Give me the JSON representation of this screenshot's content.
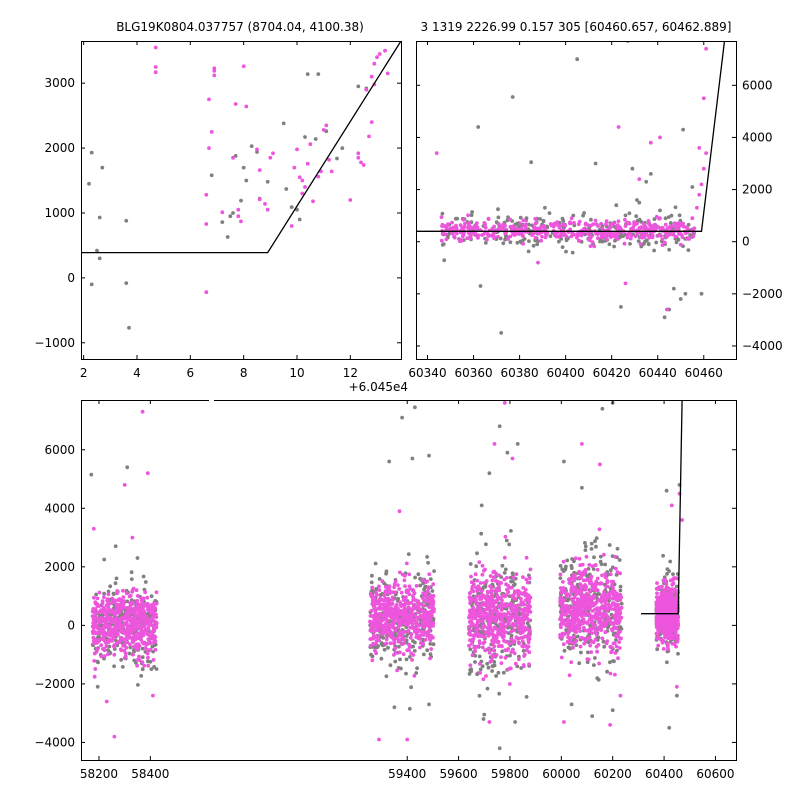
{
  "titles": {
    "left": "BLG19K0804.037757 (8704.04, 4100.38)",
    "right": "3 1319 2226.99 0.157 305 [60460.657, 60462.889]"
  },
  "colors": {
    "series_a": "#808080",
    "series_b": "#ee55dd",
    "model": "#000000"
  },
  "chart_data": [
    {
      "id": "top-left",
      "type": "scatter",
      "xlim": [
        1.9,
        13.9
      ],
      "ylim": [
        -1250,
        3650
      ],
      "xticks": [
        2,
        4,
        6,
        8,
        10,
        12
      ],
      "yticks": [
        -1000,
        0,
        1000,
        2000,
        3000
      ],
      "xtick_labels": [
        "2",
        "4",
        "6",
        "8",
        "10",
        "12"
      ],
      "ytick_labels": [
        "−1000",
        "0",
        "1000",
        "2000",
        "3000"
      ],
      "series": [
        {
          "values": [
            [
              2.2,
              1450
            ],
            [
              2.3,
              1930
            ],
            [
              2.3,
              -100
            ],
            [
              2.5,
              420
            ],
            [
              2.6,
              300
            ],
            [
              2.6,
              930
            ],
            [
              2.7,
              1700
            ],
            [
              3.6,
              880
            ],
            [
              3.6,
              -80
            ],
            [
              3.7,
              -770
            ],
            [
              6.8,
              1580
            ],
            [
              7.2,
              860
            ],
            [
              7.4,
              630
            ],
            [
              7.5,
              950
            ],
            [
              7.6,
              1000
            ],
            [
              7.7,
              1880
            ],
            [
              7.9,
              1190
            ],
            [
              8.0,
              1700
            ],
            [
              8.1,
              1500
            ],
            [
              8.3,
              2030
            ],
            [
              8.5,
              1940
            ],
            [
              8.6,
              1220
            ],
            [
              8.9,
              1480
            ],
            [
              9.5,
              2380
            ],
            [
              9.6,
              1370
            ],
            [
              9.8,
              1090
            ],
            [
              10.0,
              1050
            ],
            [
              10.1,
              900
            ],
            [
              10.3,
              2170
            ],
            [
              10.4,
              3140
            ],
            [
              10.8,
              3140
            ],
            [
              10.7,
              2140
            ],
            [
              11.1,
              2260
            ],
            [
              11.5,
              1840
            ],
            [
              11.7,
              2000
            ],
            [
              12.3,
              2950
            ],
            [
              12.6,
              2920
            ]
          ]
        },
        {
          "values": [
            [
              4.7,
              3550
            ],
            [
              4.7,
              3250
            ],
            [
              4.7,
              3170
            ],
            [
              6.6,
              830
            ],
            [
              6.6,
              -220
            ],
            [
              6.6,
              1280
            ],
            [
              6.7,
              2750
            ],
            [
              6.7,
              2000
            ],
            [
              6.8,
              2250
            ],
            [
              6.9,
              3190
            ],
            [
              6.9,
              3230
            ],
            [
              6.9,
              3120
            ],
            [
              7.2,
              1010
            ],
            [
              7.6,
              1850
            ],
            [
              7.7,
              2680
            ],
            [
              7.8,
              950
            ],
            [
              7.8,
              1050
            ],
            [
              7.9,
              870
            ],
            [
              8.0,
              3260
            ],
            [
              8.1,
              2640
            ],
            [
              8.5,
              1980
            ],
            [
              8.6,
              1660
            ],
            [
              8.6,
              1210
            ],
            [
              8.8,
              1140
            ],
            [
              8.9,
              1050
            ],
            [
              9.0,
              1850
            ],
            [
              9.1,
              1920
            ],
            [
              9.8,
              800
            ],
            [
              9.9,
              1700
            ],
            [
              10.0,
              1980
            ],
            [
              10.1,
              1550
            ],
            [
              10.2,
              1500
            ],
            [
              10.2,
              1300
            ],
            [
              10.3,
              1400
            ],
            [
              10.4,
              1760
            ],
            [
              10.5,
              2060
            ],
            [
              10.6,
              1180
            ],
            [
              10.8,
              1560
            ],
            [
              10.9,
              1640
            ],
            [
              11.0,
              2280
            ],
            [
              11.1,
              2350
            ],
            [
              11.2,
              1820
            ],
            [
              11.3,
              1640
            ],
            [
              12.0,
              1200
            ],
            [
              12.3,
              1920
            ],
            [
              12.3,
              1850
            ],
            [
              12.4,
              1780
            ],
            [
              12.5,
              1740
            ],
            [
              12.7,
              2180
            ],
            [
              12.8,
              2400
            ],
            [
              12.6,
              2900
            ],
            [
              12.8,
              3100
            ],
            [
              12.9,
              3300
            ],
            [
              13.0,
              3400
            ],
            [
              13.1,
              3450
            ],
            [
              13.3,
              3500
            ],
            [
              13.4,
              3150
            ],
            [
              12.9,
              2980
            ]
          ]
        },
        {
          "values": [
            [
              1.9,
              390
            ],
            [
              8.9,
              390
            ],
            [
              13.9,
              3650
            ]
          ]
        }
      ]
    },
    {
      "id": "top-right",
      "type": "scatter",
      "xlim": [
        60335,
        60474
      ],
      "ylim": [
        -4500,
        7700
      ],
      "xticks": [
        60340,
        60360,
        60380,
        60400,
        60420,
        60440,
        60460
      ],
      "yticks": [
        -4000,
        -2000,
        0,
        2000,
        4000,
        6000
      ],
      "xtick_labels": [
        "60340",
        "60360",
        "60380",
        "60400",
        "60420",
        "60440",
        "60460"
      ],
      "ytick_labels": [
        "−4000",
        "−2000",
        "0",
        "2000",
        "4000",
        "6000"
      ],
      "offset_label": "+6.045e4",
      "series": [
        {
          "values": [
            [
              60362,
              4400
            ],
            [
              60377,
              5550
            ],
            [
              60385,
              3050
            ],
            [
              60405,
              7000
            ],
            [
              60427,
              7700
            ],
            [
              60431,
              1600
            ],
            [
              60435,
              2300
            ],
            [
              60450,
              -2200
            ],
            [
              60452,
              -2000
            ],
            [
              60445,
              -2600
            ],
            [
              60443,
              -2900
            ],
            [
              60447,
              -1800
            ],
            [
              60459,
              -2000
            ],
            [
              60372,
              -3500
            ],
            [
              60363,
              -1700
            ],
            [
              60424,
              -2500
            ],
            [
              60413,
              3000
            ],
            [
              60451,
              4300
            ],
            [
              60429,
              2800
            ],
            [
              60437,
              2600
            ],
            [
              60374,
              200
            ],
            [
              60379,
              700
            ],
            [
              60383,
              900
            ],
            [
              60391,
              1300
            ],
            [
              60399,
              800
            ],
            [
              60408,
              1100
            ],
            [
              60416,
              600
            ],
            [
              60422,
              1400
            ],
            [
              60432,
              1500
            ],
            [
              60441,
              1200
            ],
            [
              60446,
              1000
            ],
            [
              60455,
              2100
            ]
          ]
        },
        {
          "values": [
            [
              60344,
              3400
            ],
            [
              60423,
              4400
            ],
            [
              60432,
              2400
            ],
            [
              60437,
              3800
            ],
            [
              60441,
              4000
            ],
            [
              60458,
              3600
            ],
            [
              60460,
              5500
            ],
            [
              60444,
              -2600
            ],
            [
              60461,
              7400
            ],
            [
              60426,
              -1600
            ],
            [
              60388,
              -800
            ],
            [
              60350,
              500
            ],
            [
              60356,
              400
            ],
            [
              60361,
              600
            ],
            [
              60366,
              300
            ],
            [
              60371,
              500
            ],
            [
              60376,
              200
            ],
            [
              60381,
              400
            ],
            [
              60386,
              300
            ],
            [
              60391,
              500
            ],
            [
              60396,
              200
            ],
            [
              60401,
              400
            ],
            [
              60406,
              300
            ],
            [
              60411,
              400
            ],
            [
              60416,
              500
            ],
            [
              60421,
              300
            ],
            [
              60426,
              600
            ],
            [
              60431,
              700
            ],
            [
              60436,
              800
            ],
            [
              60441,
              900
            ],
            [
              60446,
              600
            ],
            [
              60451,
              700
            ],
            [
              60455,
              900
            ],
            [
              60457,
              1300
            ],
            [
              60458,
              1800
            ],
            [
              60459,
              2200
            ],
            [
              60460,
              2800
            ],
            [
              60461,
              3400
            ]
          ]
        },
        {
          "values": [
            [
              60335,
              400
            ],
            [
              60459,
              400
            ],
            [
              60469,
              7700
            ]
          ]
        }
      ]
    },
    {
      "id": "bottom",
      "type": "scatter",
      "xlim": [
        58130,
        60680
      ],
      "ylim": [
        -4600,
        7700
      ],
      "xticks": [
        58200,
        58400,
        59400,
        59600,
        59800,
        60000,
        60200,
        60400,
        60600
      ],
      "yticks": [
        -4000,
        -2000,
        0,
        2000,
        4000,
        6000
      ],
      "xtick_labels": [
        "58200",
        "58400",
        "59400",
        "59600",
        "59800",
        "60000",
        "60200",
        "60400",
        "60600"
      ],
      "ytick_labels": [
        "−4000",
        "−2000",
        "0",
        "2000",
        "4000",
        "6000"
      ],
      "series": [
        {
          "values": [
            [
              58170,
              5150
            ],
            [
              58265,
              2700
            ],
            [
              58310,
              5400
            ],
            [
              58350,
              2300
            ],
            [
              58195,
              -2100
            ],
            [
              59330,
              5600
            ],
            [
              59380,
              7100
            ],
            [
              59430,
              7450
            ],
            [
              59420,
              5700
            ],
            [
              59485,
              5800
            ],
            [
              59350,
              -2800
            ],
            [
              59410,
              -2850
            ],
            [
              59485,
              -2700
            ],
            [
              59690,
              4100
            ],
            [
              59720,
              5200
            ],
            [
              59760,
              6800
            ],
            [
              59790,
              5900
            ],
            [
              59830,
              6200
            ],
            [
              59700,
              -3050
            ],
            [
              59760,
              -4200
            ],
            [
              59820,
              -3300
            ],
            [
              60010,
              5600
            ],
            [
              60080,
              4700
            ],
            [
              60160,
              7400
            ],
            [
              60200,
              7600
            ],
            [
              60040,
              -2700
            ],
            [
              60120,
              -3100
            ],
            [
              60200,
              -2900
            ],
            [
              60410,
              4600
            ],
            [
              60420,
              -3500
            ],
            [
              60460,
              4800
            ],
            [
              60450,
              -2400
            ]
          ]
        },
        {
          "values": [
            [
              58180,
              3300
            ],
            [
              58230,
              -2600
            ],
            [
              58260,
              -3800
            ],
            [
              58300,
              4800
            ],
            [
              58330,
              3000
            ],
            [
              58370,
              7300
            ],
            [
              58390,
              5200
            ],
            [
              58410,
              -2400
            ],
            [
              59370,
              3900
            ],
            [
              59400,
              -3900
            ],
            [
              59290,
              -3900
            ],
            [
              59720,
              -3300
            ],
            [
              59780,
              7600
            ],
            [
              59810,
              5700
            ],
            [
              59740,
              6200
            ],
            [
              60010,
              -3300
            ],
            [
              60080,
              6200
            ],
            [
              60150,
              5500
            ],
            [
              60190,
              -3400
            ],
            [
              60230,
              -2400
            ],
            [
              60430,
              4100
            ],
            [
              60450,
              -2100
            ],
            [
              60460,
              4500
            ],
            [
              60470,
              3600
            ]
          ]
        },
        {
          "values": [
            [
              60310,
              400
            ],
            [
              60455,
              400
            ],
            [
              60470,
              7700
            ]
          ]
        }
      ],
      "clusters": [
        {
          "x": [
            58175,
            58425
          ],
          "y_mean": 0,
          "y_sd": 620
        },
        {
          "x": [
            59255,
            59505
          ],
          "y_mean": 250,
          "y_sd": 700
        },
        {
          "x": [
            59640,
            59880
          ],
          "y_mean": 300,
          "y_sd": 900
        },
        {
          "x": [
            59995,
            60235
          ],
          "y_mean": 550,
          "y_sd": 850
        },
        {
          "x": [
            60370,
            60455
          ],
          "y_mean": 400,
          "y_sd": 520
        }
      ]
    }
  ]
}
